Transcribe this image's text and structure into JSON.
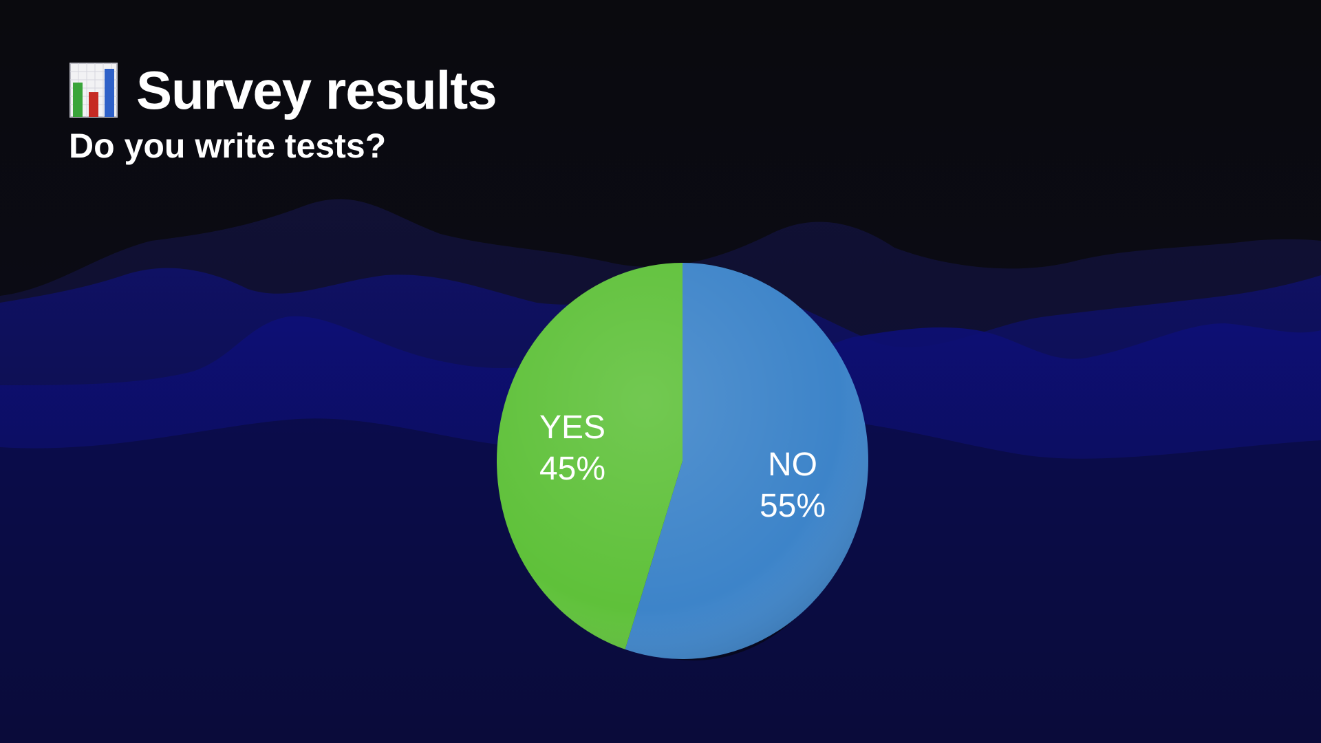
{
  "header": {
    "icon": "bar-chart-icon",
    "title": "Survey results",
    "subtitle": "Do you write tests?"
  },
  "colors": {
    "yes": "#5fc13a",
    "no": "#3d84c9",
    "background": "#0b0b12"
  },
  "chart_data": {
    "type": "pie",
    "categories": [
      "YES",
      "NO"
    ],
    "values": [
      45,
      55
    ],
    "labels": [
      {
        "name": "YES",
        "value": "45%"
      },
      {
        "name": "NO",
        "value": "55%"
      }
    ],
    "colors": [
      "#5fc13a",
      "#3d84c9"
    ]
  }
}
